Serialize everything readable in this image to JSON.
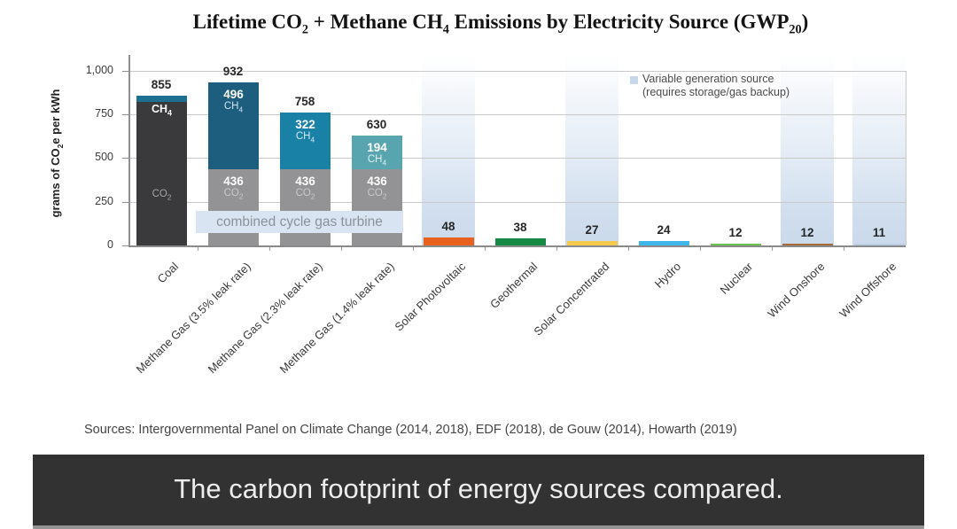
{
  "header": {
    "title_parts": {
      "p1": "Lifetime CO",
      "s1": "2",
      "p2": " + Methane CH",
      "s2": "4",
      "p3": " Emissions by Electricity Source (GWP",
      "s3": "20",
      "p4": ")"
    }
  },
  "legend": {
    "line1": "Variable generation source",
    "line2": "(requires storage/gas backup)",
    "marker_color": "#c7d8eb"
  },
  "y_axis": {
    "label_parts": {
      "p1": "grams of CO",
      "s1": "2",
      "p2": "e per kWh"
    },
    "ticks": [
      {
        "v": 0,
        "label": "0"
      },
      {
        "v": 250,
        "label": "250"
      },
      {
        "v": 500,
        "label": "500"
      },
      {
        "v": 750,
        "label": "750"
      },
      {
        "v": 1000,
        "label": "1,000"
      }
    ]
  },
  "annotations": {
    "combined_cycle": "combined cycle gas turbine"
  },
  "sources_credit": "Sources: Intergovernmental Panel on Climate Change (2014, 2018), EDF (2018), de Gouw (2014), Howarth (2019)",
  "caption": "The carbon footprint of energy sources compared.",
  "chart_data": {
    "type": "bar",
    "title": "Lifetime CO2 + Methane CH4 Emissions by Electricity Source (GWP20)",
    "ylabel": "grams of CO2e per kWh",
    "ylim": [
      0,
      1000
    ],
    "yticks": [
      0,
      250,
      500,
      750,
      1000
    ],
    "grid": "horizontal",
    "legend_note": "Variable generation source (requires storage/gas backup)",
    "combined_cycle_label": "combined cycle gas turbine",
    "variable_band_color": "#cbdaec",
    "categories": [
      "Coal",
      "Methane Gas (3.5% leak rate)",
      "Methane Gas (2.3% leak rate)",
      "Methane Gas (1.4% leak rate)",
      "Solar Photovoltaic",
      "Geothermal",
      "Solar Concentrated",
      "Hydro",
      "Nuclear",
      "Wind Onshore",
      "Wind Offshore"
    ],
    "sources": [
      {
        "label": "Coal",
        "total": 855,
        "variable": false,
        "segments": [
          {
            "gas_main": "CH",
            "gas_sub": "4",
            "value": null,
            "color": "#1e7090",
            "gas_color": "#ffffff"
          },
          {
            "gas_main": "CO",
            "gas_sub": "2",
            "value": null,
            "color": "#3a3a3c",
            "gas_color": "#a5a5a7"
          }
        ]
      },
      {
        "label": "Methane Gas (3.5% leak rate)",
        "total": 932,
        "variable": false,
        "segments": [
          {
            "gas_main": "CH",
            "gas_sub": "4",
            "value": 496,
            "color": "#1d5e7e",
            "gas_color": "#cfe3ec"
          },
          {
            "gas_main": "CO",
            "gas_sub": "2",
            "value": 436,
            "color": "#939395",
            "gas_color": "#c9c9cb"
          }
        ]
      },
      {
        "label": "Methane Gas (2.3% leak rate)",
        "total": 758,
        "variable": false,
        "segments": [
          {
            "gas_main": "CH",
            "gas_sub": "4",
            "value": 322,
            "color": "#1a81a6",
            "gas_color": "#d2e9f1"
          },
          {
            "gas_main": "CO",
            "gas_sub": "2",
            "value": 436,
            "color": "#939395",
            "gas_color": "#c9c9cb"
          }
        ]
      },
      {
        "label": "Methane Gas (1.4% leak rate)",
        "total": 630,
        "variable": false,
        "segments": [
          {
            "gas_main": "CH",
            "gas_sub": "4",
            "value": 194,
            "color": "#58a5b0",
            "gas_color": "#e0f0f3"
          },
          {
            "gas_main": "CO",
            "gas_sub": "2",
            "value": 436,
            "color": "#939395",
            "gas_color": "#c9c9cb"
          }
        ]
      },
      {
        "label": "Solar Photovoltaic",
        "total": 48,
        "variable": true,
        "color": "#e8611f"
      },
      {
        "label": "Geothermal",
        "total": 38,
        "variable": false,
        "color": "#158a45"
      },
      {
        "label": "Solar Concentrated",
        "total": 27,
        "variable": true,
        "color": "#f3ca4d"
      },
      {
        "label": "Hydro",
        "total": 24,
        "variable": false,
        "color": "#3eb6e9"
      },
      {
        "label": "Nuclear",
        "total": 12,
        "variable": false,
        "color": "#69c24b"
      },
      {
        "label": "Wind Onshore",
        "total": 12,
        "variable": true,
        "color": "#a66b39"
      },
      {
        "label": "Wind Offshore",
        "total": 11,
        "variable": true,
        "color": "#b9cfe4"
      }
    ]
  }
}
